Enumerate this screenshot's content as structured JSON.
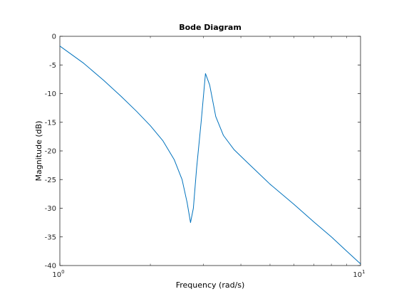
{
  "chart_data": {
    "type": "line",
    "title": "Bode Diagram",
    "xlabel": "Frequency  (rad/s)",
    "ylabel": "Magnitude (dB)",
    "xscale": "log",
    "xlim": [
      1,
      10
    ],
    "ylim": [
      -40,
      0
    ],
    "grid": false,
    "x_ticks": [
      {
        "value": 1,
        "base": "10",
        "exp": "0"
      },
      {
        "value": 10,
        "base": "10",
        "exp": "1"
      }
    ],
    "y_ticks": [
      0,
      -5,
      -10,
      -15,
      -20,
      -25,
      -30,
      -35,
      -40
    ],
    "series": [
      {
        "color": "#0072bd",
        "x": [
          1.0,
          1.2,
          1.4,
          1.6,
          1.8,
          2.0,
          2.2,
          2.4,
          2.55,
          2.65,
          2.72,
          2.78,
          2.85,
          2.95,
          3.05,
          3.15,
          3.3,
          3.5,
          3.8,
          4.2,
          5.0,
          6.0,
          7.0,
          8.0,
          9.0,
          10.0
        ],
        "y": [
          -1.7,
          -4.7,
          -7.7,
          -10.5,
          -13.1,
          -15.6,
          -18.2,
          -21.5,
          -25.0,
          -29.0,
          -32.5,
          -30.0,
          -23.0,
          -15.0,
          -6.5,
          -8.5,
          -14.0,
          -17.3,
          -19.8,
          -22.0,
          -25.8,
          -29.3,
          -32.4,
          -35.0,
          -37.5,
          -39.7
        ]
      }
    ]
  },
  "colors": {
    "background": "#ffffff",
    "axes": "#262626",
    "line": "#0072bd"
  }
}
